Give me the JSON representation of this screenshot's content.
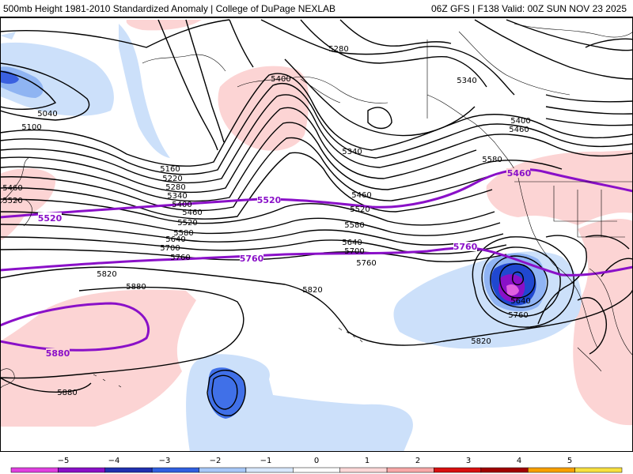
{
  "header": {
    "title": "500mb Height 1981-2010 Standardized Anomaly | College of DuPage NEXLAB",
    "valid": "06Z GFS | F138 Valid: 00Z SUN NOV 23 2025"
  },
  "contour_labels": {
    "c5040": "5040",
    "c5100": "5100",
    "c5160": "5160",
    "c5220": "5220",
    "c5280_mid": "5280",
    "c5280_top": "5280",
    "c5340_mid": "5340",
    "c5340_top": "5340",
    "c5340_ak": "5340",
    "c5400_mid": "5400",
    "c5400_ak": "5400",
    "c5400_e": "5400",
    "c5460_w": "5460",
    "c5460_mid": "5460",
    "c5460_e": "5460",
    "c5460_e2": "5460",
    "c5520_w": "5520",
    "c5520_mid": "5520",
    "c5520_c": "5520",
    "c5520_e": "5520",
    "c5520_wl": "5520",
    "c5580_mid": "5580",
    "c5580_c": "5580",
    "c5580_e": "5580",
    "c5640_mid": "5640",
    "c5640_c": "5640",
    "c5640_low": "5640",
    "c5700_mid": "5700",
    "c5700_c": "5700",
    "c5760_mid": "5760",
    "c5760_c": "5760",
    "c5760_low": "5760",
    "c5760_e": "5760",
    "c5760_p": "5760",
    "c5820_w": "5820",
    "c5820_c": "5820",
    "c5820_e": "5820",
    "c5880_w": "5880",
    "c5880_mid": "5880",
    "c5880_p": "5880"
  },
  "legend": {
    "ticks": [
      "−5",
      "−4",
      "−3",
      "−2",
      "−1",
      "0",
      "1",
      "2",
      "3",
      "4",
      "5"
    ],
    "colors": [
      "#e040e0",
      "#8a10c8",
      "#2030b0",
      "#3060e0",
      "#a8c8f8",
      "#d8e8fc",
      "#ffffff",
      "#fcd8d8",
      "#f8a8a8",
      "#d81010",
      "#a00000",
      "#f8a000",
      "#f8e040"
    ]
  },
  "colors": {
    "contour": "#000000",
    "highlight_contour": "#8a10c8",
    "pos_anomaly": "#fcd4d4",
    "neg_anomaly": "#cce0fa",
    "neg_strong": "#5078e8",
    "neg_extreme": "#9010c8"
  }
}
